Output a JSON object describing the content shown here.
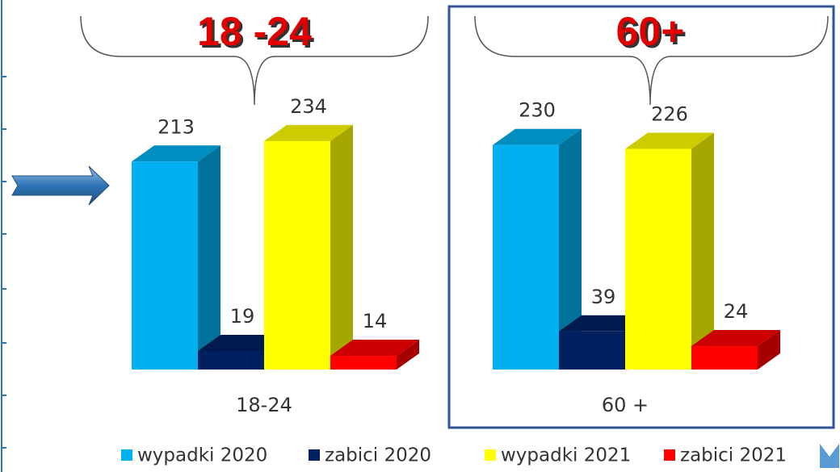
{
  "chart_data": {
    "type": "bar3d",
    "annotations": [
      "18 -24",
      "60+"
    ],
    "categories": [
      "18-24",
      "60 +"
    ],
    "series": [
      {
        "name": "wypadki 2020",
        "color": "#00b0f0",
        "values": [
          213,
          230
        ]
      },
      {
        "name": "zabici 2020",
        "color": "#002060",
        "values": [
          19,
          39
        ]
      },
      {
        "name": "wypadki 2021",
        "color": "#ffff00",
        "values": [
          234,
          226
        ]
      },
      {
        "name": "zabici 2021",
        "color": "#ff0000",
        "values": [
          14,
          24
        ]
      }
    ],
    "legend": "bottom"
  }
}
